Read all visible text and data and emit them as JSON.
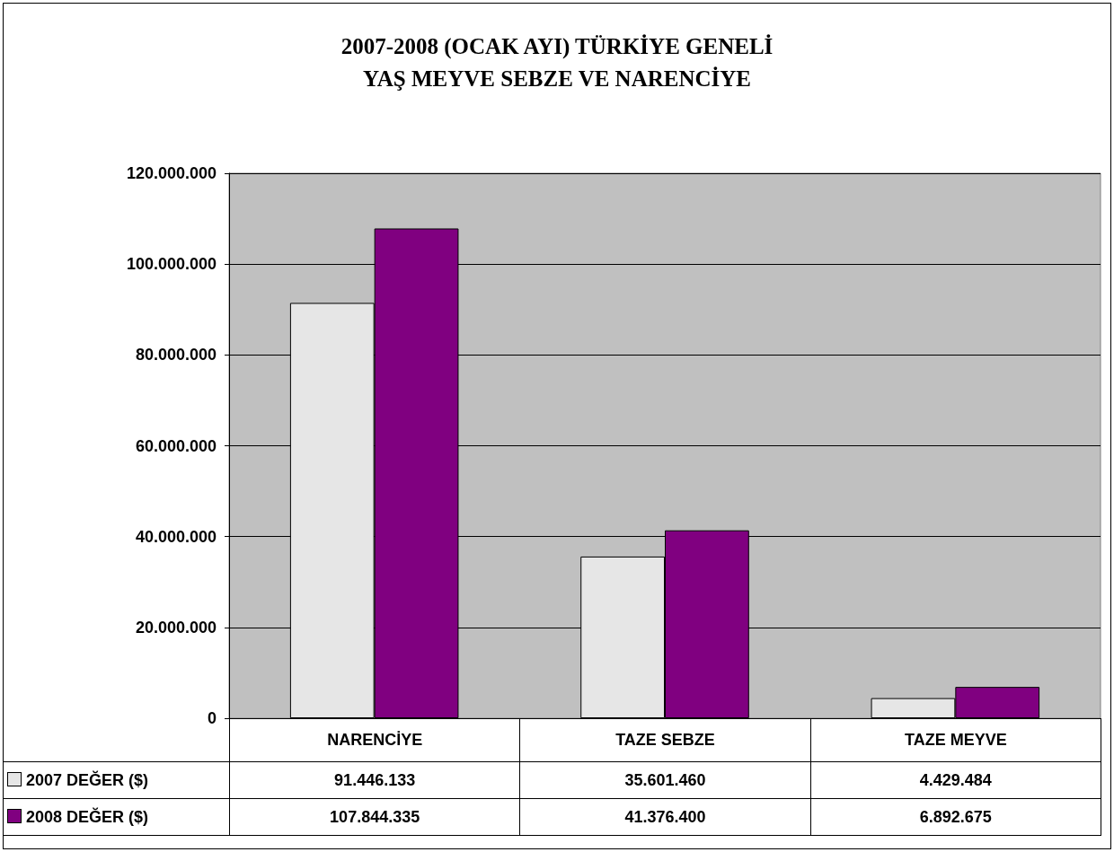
{
  "chart_data": {
    "type": "bar",
    "title": "2007-2008 (OCAK AYI) TÜRKİYE GENELİ\nYAŞ MEYVE SEBZE VE NARENCİYE",
    "categories": [
      "NARENCİYE",
      "TAZE SEBZE",
      "TAZE MEYVE"
    ],
    "series": [
      {
        "name": "2007 DEĞER ($)",
        "color": "#e6e6e6",
        "values": [
          91446133,
          35601460,
          4429484
        ],
        "value_labels": [
          "91.446.133",
          "35.601.460",
          "4.429.484"
        ]
      },
      {
        "name": "2008 DEĞER ($)",
        "color": "#800080",
        "values": [
          107844335,
          41376400,
          6892675
        ],
        "value_labels": [
          "107.844.335",
          "41.376.400",
          "6.892.675"
        ]
      }
    ],
    "ylim": [
      0,
      120000000
    ],
    "yticks": [
      {
        "value": 0,
        "label": "0"
      },
      {
        "value": 20000000,
        "label": "20.000.000"
      },
      {
        "value": 40000000,
        "label": "40.000.000"
      },
      {
        "value": 60000000,
        "label": "60.000.000"
      },
      {
        "value": 80000000,
        "label": "80.000.000"
      },
      {
        "value": 100000000,
        "label": "100.000.000"
      },
      {
        "value": 120000000,
        "label": "120.000.000"
      }
    ],
    "grid": "y",
    "legend": "bottom"
  }
}
